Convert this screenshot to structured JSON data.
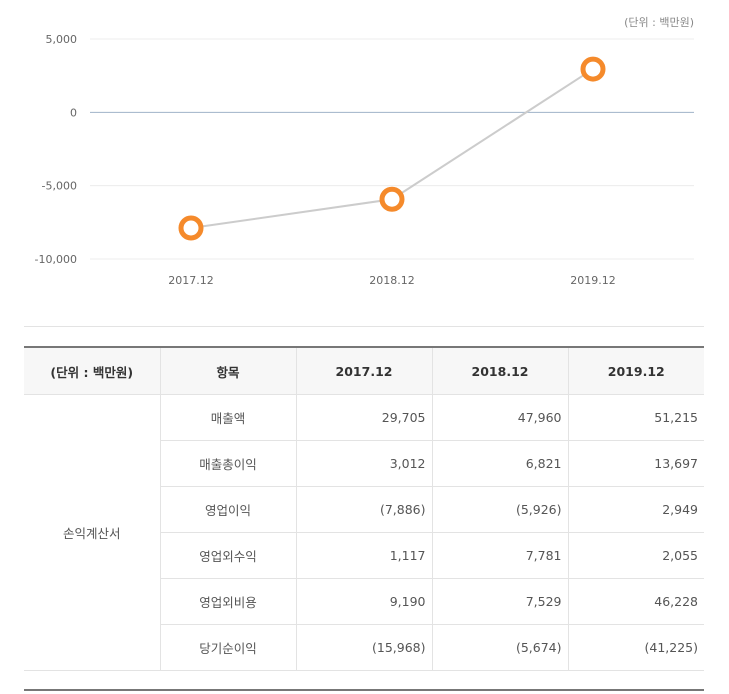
{
  "chart": {
    "unit_label": "(단위 : 백만원)"
  },
  "chart_data": {
    "type": "line",
    "categories": [
      "2017.12",
      "2018.12",
      "2019.12"
    ],
    "series": [
      {
        "values": [
          -7886,
          -5926,
          2949
        ],
        "color": "#aaaaaa",
        "marker_color": "#f58a2b"
      }
    ],
    "yticks": [
      5000,
      0,
      -5000,
      -10000
    ],
    "ytick_labels": [
      "5,000",
      "0",
      "-5,000",
      "-10,000"
    ],
    "ylim": [
      -10000,
      5000
    ],
    "zero_line_color": "#9fb3c8",
    "grid": true
  },
  "table": {
    "headers": [
      "(단위 : 백만원)",
      "항목",
      "2017.12",
      "2018.12",
      "2019.12"
    ],
    "group_label": "손익계산서",
    "rows": [
      {
        "item": "매출액",
        "values": [
          "29,705",
          "47,960",
          "51,215"
        ]
      },
      {
        "item": "매출총이익",
        "values": [
          "3,012",
          "6,821",
          "13,697"
        ]
      },
      {
        "item": "영업이익",
        "values": [
          "(7,886)",
          "(5,926)",
          "2,949"
        ]
      },
      {
        "item": "영업외수익",
        "values": [
          "1,117",
          "7,781",
          "2,055"
        ]
      },
      {
        "item": "영업외비용",
        "values": [
          "9,190",
          "7,529",
          "46,228"
        ]
      },
      {
        "item": "당기순이익",
        "values": [
          "(15,968)",
          "(5,674)",
          "(41,225)"
        ]
      }
    ]
  }
}
